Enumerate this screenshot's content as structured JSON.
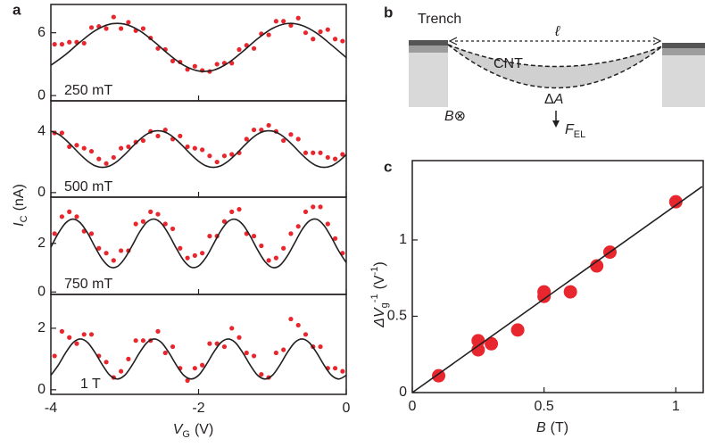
{
  "panel_labels": [
    "a",
    "b",
    "c"
  ],
  "panel_a_ylabel": {
    "main": "I",
    "sub": "C",
    "unit": "(nA)"
  },
  "diagram": {
    "trench": "Trench",
    "length": "ℓ",
    "cnt": "CNT",
    "area_delta": "Δ",
    "area": "A",
    "field": "B",
    "field_symbol": "⊗",
    "force": "F",
    "force_sub": "EL"
  },
  "chart_data": [
    {
      "type": "scatter",
      "annotation": "250 mT",
      "xlim": [
        -4,
        0
      ],
      "ylim": [
        -0.5,
        8.7
      ],
      "yticks": [
        0,
        6
      ],
      "color": "#e8262d",
      "line_color": "#231f20",
      "x": [
        -3.95,
        -3.85,
        -3.75,
        -3.65,
        -3.55,
        -3.45,
        -3.35,
        -3.25,
        -3.15,
        -3.05,
        -2.95,
        -2.85,
        -2.75,
        -2.65,
        -2.55,
        -2.45,
        -2.35,
        -2.25,
        -2.15,
        -2.05,
        -1.95,
        -1.85,
        -1.75,
        -1.65,
        -1.55,
        -1.45,
        -1.35,
        -1.25,
        -1.15,
        -1.05,
        -0.95,
        -0.85,
        -0.75,
        -0.65,
        -0.55,
        -0.45,
        -0.35,
        -0.25,
        -0.15,
        -0.05
      ],
      "values": [
        4.9,
        4.9,
        5.1,
        5.1,
        5.0,
        6.5,
        6.6,
        6.4,
        7.5,
        6.4,
        7.0,
        6.2,
        6.4,
        5.5,
        4.5,
        4.4,
        3.3,
        3.2,
        2.5,
        2.8,
        2.4,
        2.3,
        3.0,
        3.1,
        3.1,
        4.4,
        4.8,
        4.5,
        5.9,
        5.8,
        7.1,
        7.1,
        6.7,
        7.4,
        6.0,
        5.4,
        6.1,
        6.3,
        5.4,
        5.2
      ],
      "curve_x": [
        -4,
        -3.8,
        -3.6,
        -3.4,
        -3.2,
        -3,
        -2.8,
        -2.6,
        -2.4,
        -2.2,
        -2,
        -1.8,
        -1.6,
        -1.4,
        -1.2,
        -1,
        -0.8,
        -0.6,
        -0.4,
        -0.2,
        0
      ],
      "curve_values": [
        2.89,
        3.92,
        5.13,
        6.2,
        6.82,
        6.82,
        6.2,
        5.13,
        3.92,
        2.89,
        2.35,
        2.42,
        3.11,
        4.22,
        5.43,
        6.41,
        6.88,
        6.7,
        5.96,
        4.83,
        3.63
      ]
    },
    {
      "type": "scatter",
      "annotation": "500 mT",
      "xlim": [
        -4,
        0
      ],
      "ylim": [
        -0.3,
        6
      ],
      "yticks": [
        0,
        4
      ],
      "color": "#e8262d",
      "line_color": "#231f20",
      "x": [
        -3.95,
        -3.85,
        -3.75,
        -3.65,
        -3.55,
        -3.45,
        -3.35,
        -3.25,
        -3.15,
        -3.05,
        -2.95,
        -2.85,
        -2.75,
        -2.65,
        -2.55,
        -2.45,
        -2.35,
        -2.25,
        -2.15,
        -2.05,
        -1.95,
        -1.85,
        -1.75,
        -1.65,
        -1.55,
        -1.45,
        -1.35,
        -1.25,
        -1.15,
        -1.05,
        -0.95,
        -0.85,
        -0.75,
        -0.65,
        -0.55,
        -0.45,
        -0.35,
        -0.25,
        -0.15,
        -0.05
      ],
      "values": [
        3.9,
        3.9,
        3.0,
        3.1,
        2.9,
        2.7,
        2.2,
        1.9,
        2.3,
        2.9,
        3.0,
        3.3,
        3.4,
        4.0,
        3.7,
        4.1,
        3.5,
        3.7,
        3.0,
        2.9,
        2.8,
        2.4,
        2.0,
        2.4,
        2.5,
        2.6,
        3.5,
        4.1,
        4.1,
        4.4,
        4.0,
        3.4,
        3.8,
        3.5,
        2.6,
        2.6,
        2.6,
        2.3,
        2.2,
        2.5
      ],
      "curve_x": [
        -4,
        -3.9,
        -3.8,
        -3.7,
        -3.6,
        -3.5,
        -3.4,
        -3.3,
        -3.2,
        -3.1,
        -3,
        -2.9,
        -2.8,
        -2.7,
        -2.6,
        -2.5,
        -2.4,
        -2.3,
        -2.2,
        -2.1,
        -2,
        -1.9,
        -1.8,
        -1.7,
        -1.6,
        -1.5,
        -1.4,
        -1.3,
        -1.2,
        -1.1,
        -1,
        -0.9,
        -0.8,
        -0.7,
        -0.6,
        -0.5,
        -0.4,
        -0.3,
        -0.2,
        -0.1,
        0
      ],
      "curve_values": [
        4.02,
        3.82,
        3.45,
        2.98,
        2.48,
        2.05,
        1.75,
        1.65,
        1.75,
        2.05,
        2.48,
        2.98,
        3.45,
        3.82,
        4.02,
        4.02,
        3.82,
        3.45,
        2.98,
        2.48,
        2.05,
        1.75,
        1.65,
        1.75,
        2.05,
        2.48,
        2.98,
        3.45,
        3.82,
        4.02,
        4.02,
        3.82,
        3.45,
        2.98,
        2.48,
        2.05,
        1.75,
        1.65,
        1.75,
        2.05,
        2.48
      ]
    },
    {
      "type": "scatter",
      "annotation": "750 mT",
      "xlim": [
        -4,
        0
      ],
      "ylim": [
        -0.1,
        3.9
      ],
      "yticks": [
        0,
        2
      ],
      "color": "#e8262d",
      "line_color": "#231f20",
      "x": [
        -3.95,
        -3.85,
        -3.75,
        -3.65,
        -3.55,
        -3.45,
        -3.35,
        -3.25,
        -3.15,
        -3.05,
        -2.95,
        -2.85,
        -2.75,
        -2.65,
        -2.55,
        -2.45,
        -2.35,
        -2.25,
        -2.15,
        -2.05,
        -1.95,
        -1.85,
        -1.75,
        -1.65,
        -1.55,
        -1.45,
        -1.35,
        -1.25,
        -1.15,
        -1.05,
        -0.95,
        -0.85,
        -0.75,
        -0.65,
        -0.55,
        -0.45,
        -0.35,
        -0.25,
        -0.15,
        -0.05
      ],
      "values": [
        2.4,
        3.1,
        3.3,
        3.1,
        2.5,
        2.4,
        1.8,
        1.6,
        1.3,
        1.7,
        1.7,
        2.8,
        2.9,
        3.3,
        3.2,
        2.8,
        2.6,
        1.8,
        1.4,
        1.5,
        1.6,
        2.3,
        2.3,
        2.9,
        3.3,
        3.4,
        2.4,
        2.3,
        1.9,
        1.3,
        1.4,
        1.8,
        2.4,
        2.7,
        3.3,
        3.5,
        3.5,
        2.8,
        2.2,
        1.6
      ],
      "curve_x": [
        -4,
        -3.9,
        -3.8,
        -3.7,
        -3.6,
        -3.5,
        -3.4,
        -3.3,
        -3.2,
        -3.1,
        -3,
        -2.9,
        -2.8,
        -2.7,
        -2.6,
        -2.5,
        -2.4,
        -2.3,
        -2.2,
        -2.1,
        -2,
        -1.9,
        -1.8,
        -1.7,
        -1.6,
        -1.5,
        -1.4,
        -1.3,
        -1.2,
        -1.1,
        -1,
        -0.9,
        -0.8,
        -0.7,
        -0.6,
        -0.5,
        -0.4,
        -0.3,
        -0.2,
        -0.1,
        0
      ],
      "curve_values": [
        1.84,
        2.41,
        2.84,
        3.0,
        2.84,
        2.41,
        1.84,
        1.33,
        1.03,
        1.05,
        1.38,
        1.9,
        2.46,
        2.87,
        3.0,
        2.81,
        2.35,
        1.79,
        1.29,
        1.02,
        1.07,
        1.42,
        1.96,
        2.51,
        2.9,
        2.99,
        2.77,
        2.3,
        1.73,
        1.25,
        1.01,
        1.09,
        1.47,
        2.01,
        2.56,
        2.92,
        2.99,
        2.73,
        2.24,
        1.68,
        1.21
      ]
    },
    {
      "type": "scatter",
      "annotation": "1 T",
      "xlim": [
        -4,
        0
      ],
      "ylim": [
        -0.15,
        3.1
      ],
      "yticks": [
        0,
        2
      ],
      "xticks": [
        -4,
        -2,
        0
      ],
      "xlabel": {
        "main": "V",
        "sub": "G",
        "unit": "(V)"
      },
      "color": "#e8262d",
      "line_color": "#231f20",
      "x": [
        -3.95,
        -3.85,
        -3.75,
        -3.65,
        -3.55,
        -3.45,
        -3.35,
        -3.25,
        -3.15,
        -3.05,
        -2.95,
        -2.85,
        -2.75,
        -2.65,
        -2.55,
        -2.45,
        -2.35,
        -2.25,
        -2.15,
        -2.05,
        -1.95,
        -1.85,
        -1.75,
        -1.65,
        -1.55,
        -1.45,
        -1.35,
        -1.25,
        -1.15,
        -1.05,
        -0.95,
        -0.85,
        -0.75,
        -0.65,
        -0.55,
        -0.45,
        -0.35,
        -0.25,
        -0.15,
        -0.05
      ],
      "values": [
        1.1,
        1.9,
        1.7,
        1.5,
        1.8,
        1.8,
        1.1,
        0.9,
        0.4,
        0.6,
        1.0,
        1.6,
        1.6,
        1.6,
        1.9,
        1.2,
        1.4,
        0.7,
        0.3,
        0.7,
        0.8,
        1.5,
        1.5,
        1.4,
        2.0,
        1.7,
        1.2,
        1.1,
        0.5,
        0.4,
        1.2,
        1.3,
        2.3,
        2.1,
        1.8,
        1.4,
        1.4,
        0.7,
        0.7,
        0.6
      ],
      "curve_x": [
        -4,
        -3.9,
        -3.8,
        -3.7,
        -3.6,
        -3.5,
        -3.4,
        -3.3,
        -3.2,
        -3.1,
        -3,
        -2.9,
        -2.8,
        -2.7,
        -2.6,
        -2.5,
        -2.4,
        -2.3,
        -2.2,
        -2.1,
        -2,
        -1.9,
        -1.8,
        -1.7,
        -1.6,
        -1.5,
        -1.4,
        -1.3,
        -1.2,
        -1.1,
        -1,
        -0.9,
        -0.8,
        -0.7,
        -0.6,
        -0.5,
        -0.4,
        -0.3,
        -0.2,
        -0.1,
        0
      ],
      "curve_values": [
        0.47,
        0.8,
        1.2,
        1.53,
        1.65,
        1.53,
        1.2,
        0.8,
        0.47,
        0.35,
        0.47,
        0.8,
        1.2,
        1.53,
        1.65,
        1.53,
        1.2,
        0.8,
        0.47,
        0.35,
        0.47,
        0.8,
        1.2,
        1.53,
        1.65,
        1.53,
        1.2,
        0.8,
        0.47,
        0.35,
        0.47,
        0.8,
        1.2,
        1.53,
        1.65,
        1.53,
        1.2,
        0.8,
        0.47,
        0.35,
        0.47
      ]
    },
    {
      "type": "scatter",
      "xlim": [
        0,
        1.104
      ],
      "ylim": [
        0,
        1.52
      ],
      "xticks": [
        0,
        0.5,
        1
      ],
      "yticks": [
        0,
        0.5,
        1
      ],
      "color": "#e8262d",
      "line_color": "#231f20",
      "xlabel": {
        "main": "B",
        "unit": "(T)"
      },
      "ylabel": {
        "main": "ΔV",
        "sub": "g",
        "sup": "-1",
        "unit": "(V",
        "unit_sup": "-1",
        "unit_end": ")"
      },
      "x": [
        0.1,
        0.25,
        0.25,
        0.3,
        0.4,
        0.5,
        0.5,
        0.6,
        0.7,
        0.75,
        1.0
      ],
      "values": [
        0.11,
        0.34,
        0.28,
        0.32,
        0.41,
        0.66,
        0.63,
        0.66,
        0.83,
        0.92,
        1.25
      ],
      "curve_x": [
        0,
        1.1
      ],
      "curve_values": [
        0,
        1.35
      ]
    }
  ]
}
